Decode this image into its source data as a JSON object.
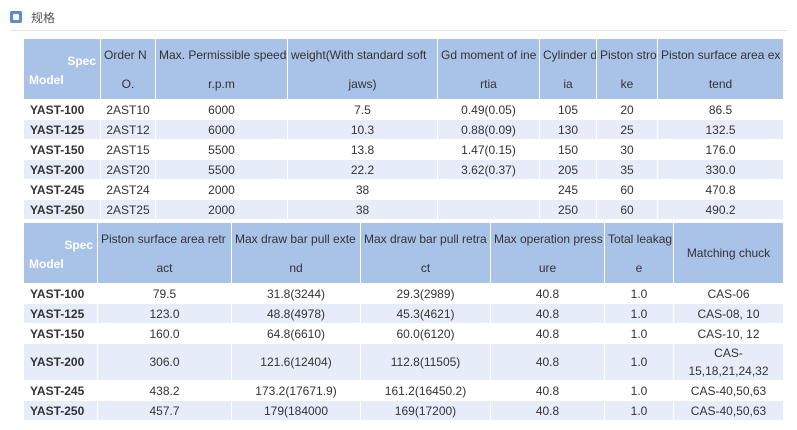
{
  "section_title": "规格",
  "tables": [
    {
      "corner": {
        "top": "Spec",
        "bottom": "Model"
      },
      "widths": [
        77,
        55,
        132,
        150,
        102,
        57,
        61,
        126
      ],
      "headers": [
        [
          "Order N",
          "O."
        ],
        [
          "Max. Permissible speed",
          "r.p.m"
        ],
        [
          "weight(With standard soft",
          "jaws)"
        ],
        [
          "Gd moment of ine",
          "rtia"
        ],
        [
          "Cylinder d",
          "ia"
        ],
        [
          "Piston stro",
          "ke"
        ],
        [
          "Piston surface area ex",
          "tend"
        ]
      ],
      "rows": [
        [
          "YAST-100",
          "2AST10",
          "6000",
          "7.5",
          "0.49(0.05)",
          "105",
          "20",
          "86.5"
        ],
        [
          "YAST-125",
          "2AST12",
          "6000",
          "10.3",
          "0.88(0.09)",
          "130",
          "25",
          "132.5"
        ],
        [
          "YAST-150",
          "2AST15",
          "5500",
          "13.8",
          "1.47(0.15)",
          "150",
          "30",
          "176.0"
        ],
        [
          "YAST-200",
          "2AST20",
          "5500",
          "22.2",
          "3.62(0.37)",
          "205",
          "35",
          "330.0"
        ],
        [
          "YAST-245",
          "2AST24",
          "2000",
          "38",
          null,
          "245",
          "60",
          "470.8"
        ],
        [
          "YAST-250",
          "2AST25",
          "2000",
          "38",
          null,
          "250",
          "60",
          "490.2"
        ]
      ]
    },
    {
      "corner": {
        "top": "Spec",
        "bottom": "Model"
      },
      "widths": [
        74,
        134,
        129,
        130,
        114,
        69,
        110
      ],
      "headers": [
        [
          "Piston surface area retr",
          "act"
        ],
        [
          "Max draw bar pull exte",
          "nd"
        ],
        [
          "Max draw bar pull retra",
          "ct"
        ],
        [
          "Max operation press",
          "ure"
        ],
        [
          "Total leakag",
          "e"
        ],
        [
          "Matching chuck"
        ]
      ],
      "rows": [
        [
          "YAST-100",
          "79.5",
          "31.8(3244)",
          "29.3(2989)",
          "40.8",
          "1.0",
          "CAS-06"
        ],
        [
          "YAST-125",
          "123.0",
          "48.8(4978)",
          "45.3(4621)",
          "40.8",
          "1.0",
          "CAS-08, 10"
        ],
        [
          "YAST-150",
          "160.0",
          "64.8(6610)",
          "60.0(6120)",
          "40.8",
          "1.0",
          "CAS-10, 12"
        ],
        [
          "YAST-200",
          "306.0",
          "121.6(12404)",
          "112.8(11505)",
          "40.8",
          "1.0",
          "CAS-15,18,21,24,32"
        ],
        [
          "YAST-245",
          "438.2",
          "173.2(17671.9)",
          "161.2(16450.2)",
          "40.8",
          "1.0",
          "CAS-40,50,63"
        ],
        [
          "YAST-250",
          "457.7",
          "179(184000",
          "169(17200)",
          "40.8",
          "1.0",
          "CAS-40,50,63"
        ]
      ]
    }
  ]
}
